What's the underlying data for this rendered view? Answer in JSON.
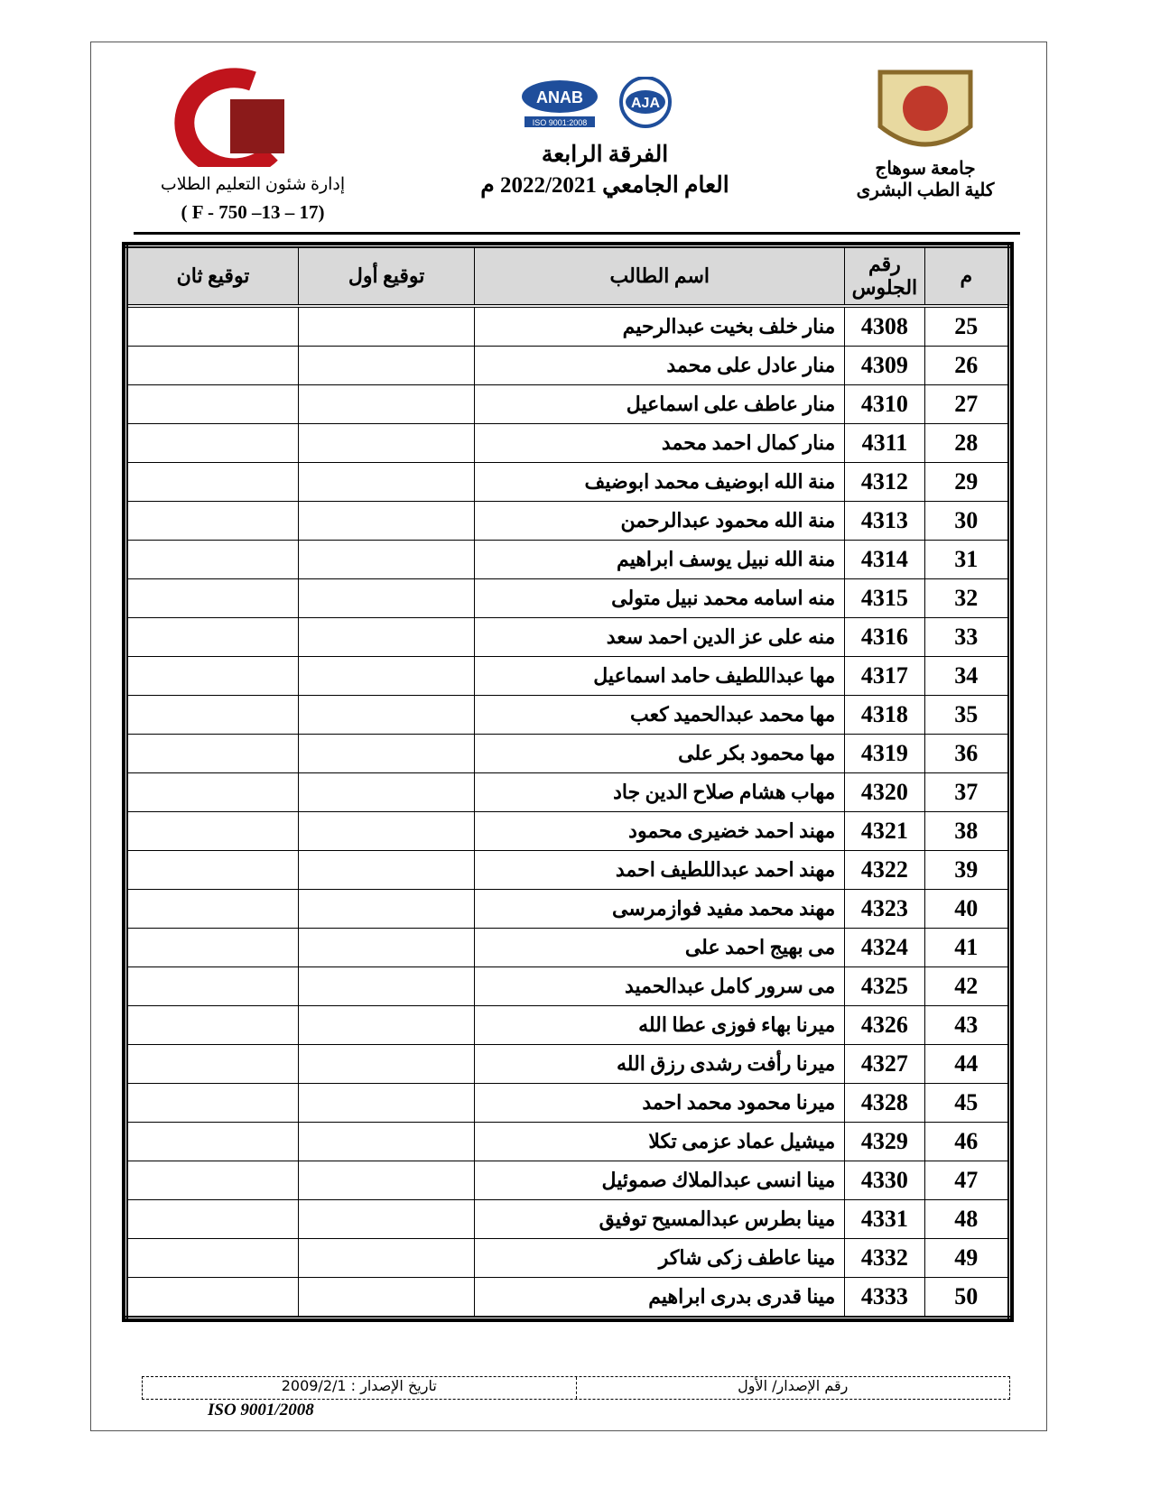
{
  "header": {
    "university": "جامعة سوهاج",
    "faculty": "كلية الطب البشرى",
    "year_level": "الفرقة الرابعة",
    "academic_year": "العام الجامعي 2022/2021 م",
    "department": "إدارة شئون التعليم الطلاب",
    "form_code": "( F - 750 –13 – 17)",
    "logo_anab": "ANAB",
    "logo_anab_sub": "ISO 9001:2008",
    "logo_aja": "AJA"
  },
  "table": {
    "columns": [
      "م",
      "رقم الجلوس",
      "اسم الطالب",
      "توقيع أول",
      "توقيع ثان"
    ],
    "rows": [
      [
        25,
        4308,
        "منار خلف بخيت عبدالرحيم"
      ],
      [
        26,
        4309,
        "منار عادل على محمد"
      ],
      [
        27,
        4310,
        "منار عاطف على اسماعيل"
      ],
      [
        28,
        4311,
        "منار كمال احمد محمد"
      ],
      [
        29,
        4312,
        "منة الله ابوضيف محمد ابوضيف"
      ],
      [
        30,
        4313,
        "منة الله محمود عبدالرحمن"
      ],
      [
        31,
        4314,
        "منة الله نبيل يوسف ابراهيم"
      ],
      [
        32,
        4315,
        "منه اسامه محمد نبيل متولى"
      ],
      [
        33,
        4316,
        "منه على عز الدين احمد سعد"
      ],
      [
        34,
        4317,
        "مها عبداللطيف حامد اسماعيل"
      ],
      [
        35,
        4318,
        "مها محمد عبدالحميد كعب"
      ],
      [
        36,
        4319,
        "مها محمود بكر على"
      ],
      [
        37,
        4320,
        "مهاب هشام صلاح الدين جاد"
      ],
      [
        38,
        4321,
        "مهند احمد خضيرى محمود"
      ],
      [
        39,
        4322,
        "مهند احمد عبداللطيف احمد"
      ],
      [
        40,
        4323,
        "مهند محمد مفيد فوازمرسى"
      ],
      [
        41,
        4324,
        "مى بهيج احمد على"
      ],
      [
        42,
        4325,
        "مى سرور كامل عبدالحميد"
      ],
      [
        43,
        4326,
        "ميرنا بهاء فوزى عطا الله"
      ],
      [
        44,
        4327,
        "ميرنا رأفت رشدى رزق الله"
      ],
      [
        45,
        4328,
        "ميرنا محمود محمد احمد"
      ],
      [
        46,
        4329,
        "ميشيل عماد عزمى تكلا"
      ],
      [
        47,
        4330,
        "مينا انسى عبدالملاك صموئيل"
      ],
      [
        48,
        4331,
        "مينا بطرس عبدالمسيح توفيق"
      ],
      [
        49,
        4332,
        "مينا عاطف زكى شاكر"
      ],
      [
        50,
        4333,
        "مينا قدرى بدرى ابراهيم"
      ]
    ]
  },
  "footer": {
    "issue_no": "رقم الإصدار/ الأول",
    "issue_date": "تاريخ الإصدار : 2009/2/1",
    "iso": "ISO 9001/2008"
  }
}
